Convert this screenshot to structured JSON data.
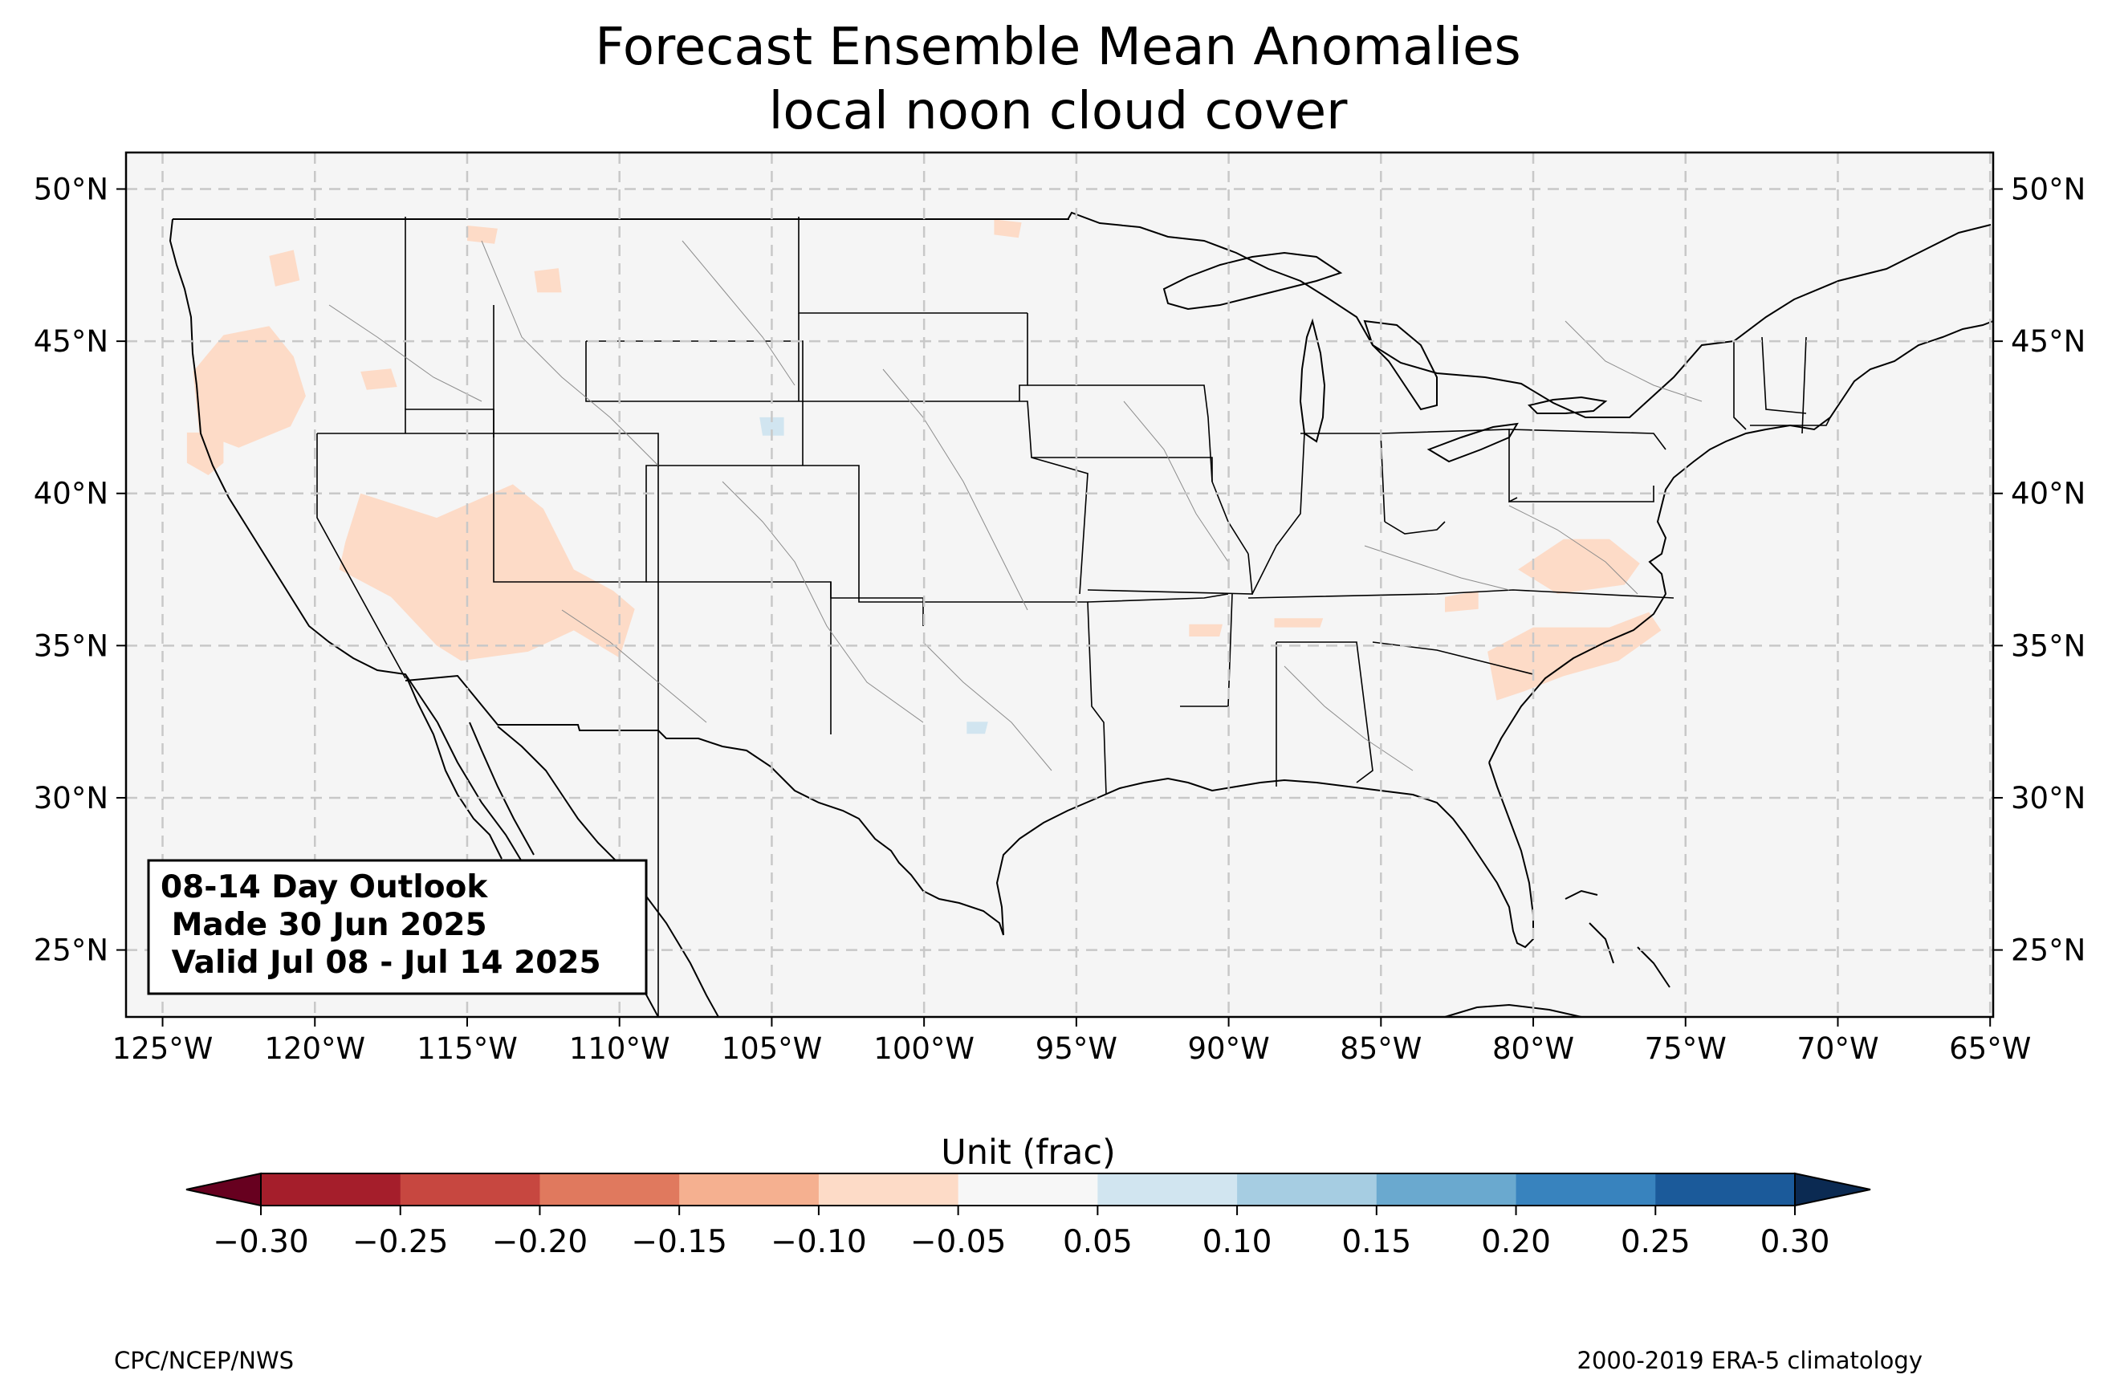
{
  "title": {
    "line1": "Forecast Ensemble Mean Anomalies",
    "line2": "local noon cloud cover"
  },
  "map": {
    "lon_range": [
      -126.2,
      -64.9
    ],
    "lat_range": [
      22.8,
      51.2
    ],
    "background_color": "#f5f5f5",
    "x_ticks": [
      {
        "lon": -125,
        "label": "125°W"
      },
      {
        "lon": -120,
        "label": "120°W"
      },
      {
        "lon": -115,
        "label": "115°W"
      },
      {
        "lon": -110,
        "label": "110°W"
      },
      {
        "lon": -105,
        "label": "105°W"
      },
      {
        "lon": -100,
        "label": "100°W"
      },
      {
        "lon": -95,
        "label": "95°W"
      },
      {
        "lon": -90,
        "label": "90°W"
      },
      {
        "lon": -85,
        "label": "85°W"
      },
      {
        "lon": -80,
        "label": "80°W"
      },
      {
        "lon": -75,
        "label": "75°W"
      },
      {
        "lon": -70,
        "label": "70°W"
      },
      {
        "lon": -65,
        "label": "65°W"
      }
    ],
    "y_ticks": [
      {
        "lat": 50,
        "label": "50°N"
      },
      {
        "lat": 45,
        "label": "45°N"
      },
      {
        "lat": 40,
        "label": "40°N"
      },
      {
        "lat": 35,
        "label": "35°N"
      },
      {
        "lat": 30,
        "label": "30°N"
      },
      {
        "lat": 25,
        "label": "25°N"
      }
    ],
    "anomaly_regions": [
      {
        "name": "oregon-interior",
        "color": "#fddbc7",
        "points": [
          [
            -124,
            44
          ],
          [
            -123,
            45.2
          ],
          [
            -121.5,
            45.5
          ],
          [
            -120.7,
            44.5
          ],
          [
            -120.3,
            43.2
          ],
          [
            -120.8,
            42.2
          ],
          [
            -122.5,
            41.5
          ],
          [
            -123.8,
            42
          ]
        ]
      },
      {
        "name": "northern-california",
        "color": "#fddbc7",
        "points": [
          [
            -124.2,
            42
          ],
          [
            -123,
            42
          ],
          [
            -123,
            41
          ],
          [
            -123.5,
            40.6
          ],
          [
            -124.2,
            41
          ]
        ]
      },
      {
        "name": "washington-cascades",
        "color": "#fddbc7",
        "points": [
          [
            -121.5,
            47.8
          ],
          [
            -120.7,
            48
          ],
          [
            -120.5,
            47
          ],
          [
            -121.3,
            46.8
          ]
        ]
      },
      {
        "name": "eastern-oregon",
        "color": "#fddbc7",
        "points": [
          [
            -118.5,
            44
          ],
          [
            -117.5,
            44.1
          ],
          [
            -117.3,
            43.5
          ],
          [
            -118.3,
            43.4
          ]
        ]
      },
      {
        "name": "nw-montana",
        "color": "#fddbc7",
        "points": [
          [
            -115,
            48.8
          ],
          [
            -114,
            48.7
          ],
          [
            -114.1,
            48.2
          ],
          [
            -115,
            48.3
          ]
        ]
      },
      {
        "name": "idaho-panhandle",
        "color": "#fddbc7",
        "points": [
          [
            -112.8,
            47.3
          ],
          [
            -112,
            47.4
          ],
          [
            -111.9,
            46.6
          ],
          [
            -112.7,
            46.6
          ]
        ]
      },
      {
        "name": "great-basin",
        "color": "#fddbc7",
        "points": [
          [
            -118.5,
            40
          ],
          [
            -116,
            39.2
          ],
          [
            -113.5,
            40.3
          ],
          [
            -112.5,
            39.5
          ],
          [
            -111.5,
            37.5
          ],
          [
            -110.2,
            36.8
          ],
          [
            -109.5,
            36.2
          ],
          [
            -110,
            34.6
          ],
          [
            -111.5,
            35.5
          ],
          [
            -113,
            34.8
          ],
          [
            -115.2,
            34.5
          ],
          [
            -116,
            35
          ],
          [
            -117.5,
            36.6
          ],
          [
            -119.2,
            37.5
          ],
          [
            -119,
            38.4
          ]
        ]
      },
      {
        "name": "northern-dakota",
        "color": "#fddbc7",
        "points": [
          [
            -97.7,
            49
          ],
          [
            -96.8,
            48.9
          ],
          [
            -96.9,
            48.4
          ],
          [
            -97.7,
            48.5
          ]
        ]
      },
      {
        "name": "arkansas-tennessee",
        "color": "#fddbc7",
        "points": [
          [
            -91.3,
            35.7
          ],
          [
            -90.2,
            35.7
          ],
          [
            -90.3,
            35.3
          ],
          [
            -91.3,
            35.3
          ]
        ]
      },
      {
        "name": "tennessee-north",
        "color": "#fddbc7",
        "points": [
          [
            -88.5,
            35.9
          ],
          [
            -86.9,
            35.9
          ],
          [
            -87,
            35.6
          ],
          [
            -88.5,
            35.6
          ]
        ]
      },
      {
        "name": "kentucky-east",
        "color": "#fddbc7",
        "points": [
          [
            -82.9,
            36.6
          ],
          [
            -81.8,
            36.8
          ],
          [
            -81.8,
            36.2
          ],
          [
            -82.9,
            36.1
          ]
        ]
      },
      {
        "name": "virginia-piedmont",
        "color": "#fddbc7",
        "points": [
          [
            -80.5,
            37.5
          ],
          [
            -79,
            38.5
          ],
          [
            -77.5,
            38.5
          ],
          [
            -76.5,
            37.7
          ],
          [
            -77,
            37
          ],
          [
            -79.2,
            36.7
          ]
        ]
      },
      {
        "name": "carolinas",
        "color": "#fddbc7",
        "points": [
          [
            -81.5,
            34.8
          ],
          [
            -80,
            35.6
          ],
          [
            -77.5,
            35.6
          ],
          [
            -76.2,
            36.1
          ],
          [
            -75.8,
            35.5
          ],
          [
            -77.2,
            34.5
          ],
          [
            -79,
            34
          ],
          [
            -80.3,
            33.5
          ],
          [
            -81.2,
            33.2
          ]
        ]
      },
      {
        "name": "wyoming-se",
        "color": "#d1e5f0",
        "points": [
          [
            -105.4,
            42.5
          ],
          [
            -104.6,
            42.5
          ],
          [
            -104.6,
            41.9
          ],
          [
            -105.3,
            41.9
          ]
        ]
      },
      {
        "name": "central-texas",
        "color": "#d1e5f0",
        "points": [
          [
            -98.6,
            32.5
          ],
          [
            -97.9,
            32.5
          ],
          [
            -98,
            32.1
          ],
          [
            -98.6,
            32.1
          ]
        ]
      }
    ]
  },
  "info_box": {
    "line1": "08-14 Day Outlook",
    "line2": " Made 30 Jun 2025",
    "line3": " Valid Jul 08 - Jul 14 2025"
  },
  "colorbar": {
    "label": "Unit (frac)",
    "bounds": [
      -0.3,
      -0.25,
      -0.2,
      -0.15,
      -0.1,
      -0.05,
      0.05,
      0.1,
      0.15,
      0.2,
      0.25,
      0.3
    ],
    "colors": [
      "#a51e2b",
      "#c74740",
      "#e0795e",
      "#f5b090",
      "#fddbc7",
      "#f7f7f7",
      "#d1e5f0",
      "#a6cde2",
      "#6aa9cf",
      "#3883be",
      "#1b5a9a"
    ],
    "under_color": "#67001f",
    "over_color": "#0b2a52",
    "tick_labels": [
      "−0.30",
      "−0.25",
      "−0.20",
      "−0.15",
      "−0.10",
      "−0.05",
      "0.05",
      "0.10",
      "0.15",
      "0.20",
      "0.25",
      "0.30"
    ]
  },
  "credits": {
    "left": "CPC/NCEP/NWS",
    "right": "2000-2019 ERA-5 climatology"
  }
}
